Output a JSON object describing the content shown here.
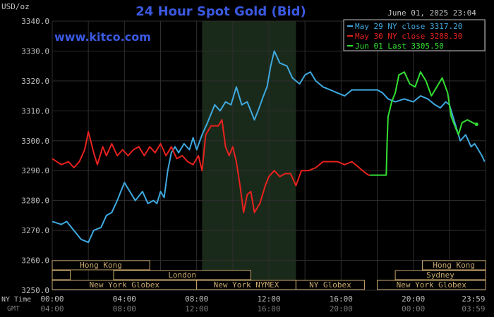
{
  "header": {
    "unit": "USD/oz",
    "title": "24 Hour Spot Gold (Bid)",
    "datetime": "June 01, 2025 23:04",
    "brand": "www.kitco.com"
  },
  "colors": {
    "background": "#000000",
    "grid": "#2e2e2e",
    "title": "#3b59e0",
    "brand": "#3b59e0",
    "may29": "#3fa9e0",
    "may30": "#e8221e",
    "jun01": "#33e033",
    "session_fill": "#000000",
    "session_border": "#c8a86e",
    "session_text": "#c8a86e",
    "highlight_band": "#1a2a1a",
    "axis_text": "#c0c0c0",
    "gmt_text": "#7a7a7a"
  },
  "legend": [
    {
      "label": "May 29 NY close 3317.20",
      "color": "#3fa9e0"
    },
    {
      "label": "May 30 NY close 3288.30",
      "color": "#e8221e"
    },
    {
      "label": "Jun 01 Last 3305.50",
      "color": "#33e033"
    }
  ],
  "time_axis": {
    "ny_label": "NY Time",
    "gmt_label": "GMT",
    "ny_ticks": [
      {
        "x": 0,
        "label": "00:00"
      },
      {
        "x": 4,
        "label": "04:00"
      },
      {
        "x": 8,
        "label": "08:00"
      },
      {
        "x": 12,
        "label": "12:00"
      },
      {
        "x": 16,
        "label": "16:00"
      },
      {
        "x": 20,
        "label": "20:00"
      },
      {
        "x": 23.98,
        "label": "23:59"
      }
    ],
    "gmt_ticks": [
      {
        "x": 0,
        "label": "04:00"
      },
      {
        "x": 4,
        "label": "08:00"
      },
      {
        "x": 8,
        "label": "12:00"
      },
      {
        "x": 12,
        "label": "16:00"
      },
      {
        "x": 16,
        "label": "20:00"
      },
      {
        "x": 20,
        "label": "00:00"
      },
      {
        "x": 23.98,
        "label": "03:59"
      }
    ]
  },
  "sessions": [
    {
      "label": "Hong Kong",
      "start": 0,
      "end": 5.4,
      "row": 0
    },
    {
      "label": "Hong Kong",
      "start": 20.5,
      "end": 24,
      "row": 0
    },
    {
      "label": "London",
      "start": 0,
      "end": 1.0,
      "row": 1,
      "hide_label": true
    },
    {
      "label": "London",
      "start": 3.4,
      "end": 11.0,
      "row": 1
    },
    {
      "label": "Sydney",
      "start": 19.0,
      "end": 24,
      "row": 1
    },
    {
      "label": "New York Globex",
      "start": 0,
      "end": 8.0,
      "row": 2
    },
    {
      "label": "New York NYMEX",
      "start": 8.0,
      "end": 13.5,
      "row": 2
    },
    {
      "label": "NY Globex",
      "start": 13.5,
      "end": 17.3,
      "row": 2
    },
    {
      "label": "New York Globex",
      "start": 18.0,
      "end": 24,
      "row": 2
    }
  ],
  "chart_data": {
    "type": "line",
    "title": "24 Hour Spot Gold (Bid)",
    "ylabel": "USD/oz",
    "xlabel": "NY Time",
    "xlim": [
      0,
      24
    ],
    "ylim": [
      3250,
      3340
    ],
    "yticks": [
      3250,
      3260,
      3270,
      3280,
      3290,
      3300,
      3310,
      3320,
      3330,
      3340
    ],
    "ytick_labels": [
      "3250.0",
      "3260.0",
      "3270.0",
      "3280.0",
      "3290.0",
      "3300.0",
      "3310.0",
      "3320.0",
      "3330.0",
      "3340.0"
    ],
    "grid": true,
    "legend_position": "top-right",
    "highlight_range": [
      8.3,
      13.5
    ],
    "series": [
      {
        "name": "May 29 NY close 3317.20",
        "color": "#3fa9e0",
        "points": [
          [
            0,
            3273
          ],
          [
            0.5,
            3272
          ],
          [
            0.8,
            3273
          ],
          [
            1.2,
            3270
          ],
          [
            1.6,
            3267
          ],
          [
            2.0,
            3266
          ],
          [
            2.3,
            3270
          ],
          [
            2.7,
            3271
          ],
          [
            3.0,
            3275
          ],
          [
            3.3,
            3276
          ],
          [
            3.6,
            3280
          ],
          [
            3.8,
            3283
          ],
          [
            4.0,
            3286
          ],
          [
            4.3,
            3283
          ],
          [
            4.6,
            3280
          ],
          [
            5.0,
            3283
          ],
          [
            5.3,
            3279
          ],
          [
            5.6,
            3280
          ],
          [
            5.8,
            3279
          ],
          [
            6.0,
            3283
          ],
          [
            6.2,
            3281
          ],
          [
            6.4,
            3290
          ],
          [
            6.6,
            3296
          ],
          [
            6.8,
            3298
          ],
          [
            7.0,
            3296
          ],
          [
            7.3,
            3299
          ],
          [
            7.6,
            3297
          ],
          [
            7.8,
            3301
          ],
          [
            8.0,
            3297
          ],
          [
            8.3,
            3302
          ],
          [
            8.6,
            3306
          ],
          [
            9.0,
            3312
          ],
          [
            9.3,
            3310
          ],
          [
            9.6,
            3313
          ],
          [
            9.9,
            3312
          ],
          [
            10.2,
            3318
          ],
          [
            10.5,
            3312
          ],
          [
            10.8,
            3313
          ],
          [
            11.0,
            3310
          ],
          [
            11.2,
            3307
          ],
          [
            11.4,
            3310
          ],
          [
            11.7,
            3315
          ],
          [
            11.9,
            3318
          ],
          [
            12.1,
            3325
          ],
          [
            12.3,
            3330
          ],
          [
            12.6,
            3326
          ],
          [
            13.0,
            3325
          ],
          [
            13.3,
            3321
          ],
          [
            13.7,
            3319
          ],
          [
            14.0,
            3322
          ],
          [
            14.3,
            3323
          ],
          [
            14.6,
            3320
          ],
          [
            15.0,
            3318
          ],
          [
            15.4,
            3317
          ],
          [
            15.8,
            3316
          ],
          [
            16.2,
            3315
          ],
          [
            16.6,
            3317
          ],
          [
            17.0,
            3317
          ],
          [
            17.5,
            3317
          ],
          [
            18.0,
            3317
          ],
          [
            18.3,
            3316
          ],
          [
            18.6,
            3314
          ],
          [
            19.0,
            3313
          ],
          [
            19.5,
            3314
          ],
          [
            20.0,
            3313
          ],
          [
            20.4,
            3315
          ],
          [
            20.8,
            3314
          ],
          [
            21.2,
            3312
          ],
          [
            21.5,
            3311
          ],
          [
            21.8,
            3313
          ],
          [
            22.0,
            3312
          ],
          [
            22.3,
            3306
          ],
          [
            22.6,
            3300
          ],
          [
            22.9,
            3302
          ],
          [
            23.2,
            3298
          ],
          [
            23.4,
            3299
          ],
          [
            23.6,
            3297
          ],
          [
            23.8,
            3295
          ],
          [
            23.95,
            3293
          ]
        ]
      },
      {
        "name": "May 30 NY close 3288.30",
        "color": "#e8221e",
        "points": [
          [
            0,
            3294
          ],
          [
            0.5,
            3292
          ],
          [
            0.9,
            3293
          ],
          [
            1.2,
            3291
          ],
          [
            1.5,
            3293
          ],
          [
            1.8,
            3297
          ],
          [
            2.0,
            3303
          ],
          [
            2.3,
            3296
          ],
          [
            2.5,
            3292
          ],
          [
            2.8,
            3298
          ],
          [
            3.0,
            3295
          ],
          [
            3.3,
            3299
          ],
          [
            3.6,
            3295
          ],
          [
            3.9,
            3297
          ],
          [
            4.2,
            3295
          ],
          [
            4.5,
            3297
          ],
          [
            4.8,
            3298
          ],
          [
            5.1,
            3295
          ],
          [
            5.4,
            3298
          ],
          [
            5.7,
            3296
          ],
          [
            6.0,
            3299
          ],
          [
            6.3,
            3295
          ],
          [
            6.6,
            3298
          ],
          [
            6.9,
            3294
          ],
          [
            7.2,
            3295
          ],
          [
            7.5,
            3293
          ],
          [
            7.8,
            3292
          ],
          [
            8.1,
            3295
          ],
          [
            8.3,
            3290
          ],
          [
            8.5,
            3302
          ],
          [
            8.8,
            3305
          ],
          [
            9.2,
            3305
          ],
          [
            9.4,
            3307
          ],
          [
            9.6,
            3298
          ],
          [
            9.8,
            3295
          ],
          [
            10.0,
            3298
          ],
          [
            10.2,
            3293
          ],
          [
            10.4,
            3285
          ],
          [
            10.6,
            3276
          ],
          [
            10.8,
            3282
          ],
          [
            11.0,
            3283
          ],
          [
            11.2,
            3276
          ],
          [
            11.5,
            3279
          ],
          [
            11.8,
            3285
          ],
          [
            12.0,
            3288
          ],
          [
            12.3,
            3290
          ],
          [
            12.6,
            3288
          ],
          [
            12.9,
            3289
          ],
          [
            13.2,
            3289
          ],
          [
            13.5,
            3285
          ],
          [
            13.8,
            3290
          ],
          [
            14.2,
            3290
          ],
          [
            14.6,
            3291
          ],
          [
            15.0,
            3293
          ],
          [
            15.4,
            3293
          ],
          [
            15.8,
            3293
          ],
          [
            16.2,
            3292
          ],
          [
            16.6,
            3293
          ],
          [
            17.0,
            3291
          ],
          [
            17.4,
            3289
          ],
          [
            17.6,
            3288.3
          ]
        ]
      },
      {
        "name": "Jun 01 Last 3305.50",
        "color": "#33e033",
        "points": [
          [
            17.6,
            3288.5
          ],
          [
            18.0,
            3288.5
          ],
          [
            18.5,
            3288.5
          ],
          [
            18.55,
            3300
          ],
          [
            18.6,
            3308
          ],
          [
            18.8,
            3313
          ],
          [
            19.0,
            3316
          ],
          [
            19.2,
            3322
          ],
          [
            19.5,
            3323
          ],
          [
            19.8,
            3319
          ],
          [
            20.1,
            3318
          ],
          [
            20.4,
            3323
          ],
          [
            20.7,
            3320
          ],
          [
            21.0,
            3315
          ],
          [
            21.3,
            3318
          ],
          [
            21.6,
            3321
          ],
          [
            21.9,
            3316
          ],
          [
            22.1,
            3308
          ],
          [
            22.3,
            3305
          ],
          [
            22.5,
            3302
          ],
          [
            22.7,
            3306
          ],
          [
            23.0,
            3307
          ],
          [
            23.3,
            3306
          ],
          [
            23.5,
            3305.5
          ]
        ]
      }
    ]
  }
}
